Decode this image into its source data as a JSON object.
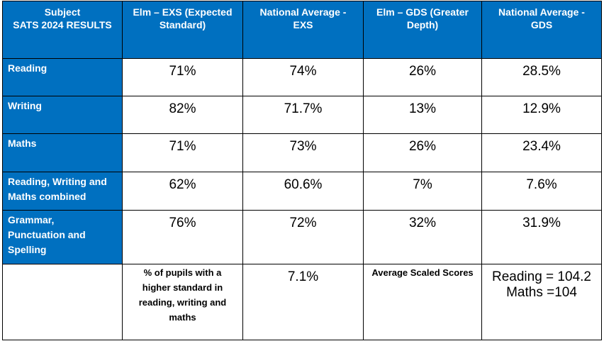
{
  "table": {
    "headers": [
      [
        "Subject",
        "SATS 2024 RESULTS"
      ],
      [
        "Elm – EXS (Expected",
        "Standard)"
      ],
      [
        "National Average -",
        "EXS"
      ],
      [
        "Elm – GDS (Greater",
        "Depth)"
      ],
      [
        "National Average -",
        "GDS"
      ]
    ],
    "rows": [
      {
        "subject": [
          "Reading"
        ],
        "cells": [
          "71%",
          "74%",
          "26%",
          "28.5%"
        ]
      },
      {
        "subject": [
          "Writing"
        ],
        "cells": [
          "82%",
          "71.7%",
          "13%",
          "12.9%"
        ]
      },
      {
        "subject": [
          "Maths"
        ],
        "cells": [
          "71%",
          "73%",
          "26%",
          "23.4%"
        ]
      },
      {
        "subject": [
          "Reading, Writing and",
          "Maths combined"
        ],
        "cells": [
          "62%",
          "60.6%",
          "7%",
          "7.6%"
        ]
      },
      {
        "subject": [
          "Grammar,",
          "Punctuation and",
          "Spelling"
        ],
        "cells": [
          "76%",
          "72%",
          "32%",
          "31.9%"
        ]
      }
    ],
    "footer": {
      "higher_standard_label": [
        "% of pupils with a",
        "higher standard in",
        "reading, writing and",
        "maths"
      ],
      "higher_standard_value": "7.1%",
      "scaled_scores_label": "Average Scaled Scores",
      "scaled_scores_values": [
        "Reading = 104.2",
        "Maths =104"
      ]
    }
  },
  "colors": {
    "header_bg": "#0070c0",
    "header_text": "#ffffff",
    "border": "#000000"
  }
}
